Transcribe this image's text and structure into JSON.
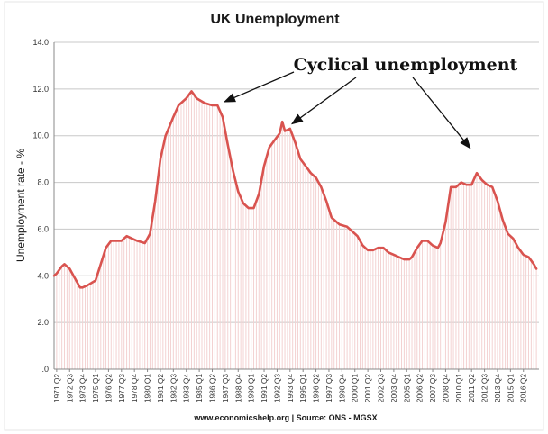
{
  "chart_data": {
    "type": "line",
    "title": "UK Unemployment",
    "xlabel": "",
    "ylabel": "Unemployment rate - %",
    "ylim": [
      0,
      14
    ],
    "y_ticks": [
      ".0",
      "2.0",
      "4.0",
      "6.0",
      "8.0",
      "10.0",
      "12.0",
      "14.0"
    ],
    "x_tick_labels": [
      "1971 Q2",
      "1972 Q3",
      "1973 Q4",
      "1975 Q1",
      "1976 Q2",
      "1977 Q3",
      "1978 Q4",
      "1980 Q1",
      "1981 Q2",
      "1982 Q3",
      "1983 Q4",
      "1985 Q1",
      "1986 Q2",
      "1987 Q3",
      "1988 Q4",
      "1990 Q1",
      "1991 Q2",
      "1992 Q3",
      "1993 Q4",
      "1995 Q1",
      "1996 Q2",
      "1997 Q3",
      "1998 Q4",
      "2000 Q1",
      "2001 Q2",
      "2002 Q3",
      "2003 Q4",
      "2005 Q1",
      "2006 Q2",
      "2007 Q3",
      "2008 Q4",
      "2010 Q1",
      "2011 Q2",
      "2012 Q3",
      "2013 Q4",
      "2015 Q1",
      "2016 Q2"
    ],
    "series": [
      {
        "color": "#d9534f",
        "points": [
          {
            "x": "1971 Q1",
            "y": 4.0
          },
          {
            "x": "1971 Q2",
            "y": 4.1
          },
          {
            "x": "1971 Q4",
            "y": 4.4
          },
          {
            "x": "1972 Q1",
            "y": 4.5
          },
          {
            "x": "1972 Q3",
            "y": 4.3
          },
          {
            "x": "1973 Q1",
            "y": 3.9
          },
          {
            "x": "1973 Q3",
            "y": 3.5
          },
          {
            "x": "1973 Q4",
            "y": 3.5
          },
          {
            "x": "1974 Q2",
            "y": 3.6
          },
          {
            "x": "1975 Q1",
            "y": 3.8
          },
          {
            "x": "1975 Q3",
            "y": 4.5
          },
          {
            "x": "1976 Q1",
            "y": 5.2
          },
          {
            "x": "1976 Q3",
            "y": 5.5
          },
          {
            "x": "1977 Q1",
            "y": 5.5
          },
          {
            "x": "1977 Q3",
            "y": 5.5
          },
          {
            "x": "1978 Q1",
            "y": 5.7
          },
          {
            "x": "1978 Q3",
            "y": 5.6
          },
          {
            "x": "1979 Q1",
            "y": 5.5
          },
          {
            "x": "1979 Q4",
            "y": 5.4
          },
          {
            "x": "1980 Q2",
            "y": 5.8
          },
          {
            "x": "1980 Q4",
            "y": 7.2
          },
          {
            "x": "1981 Q2",
            "y": 9.0
          },
          {
            "x": "1981 Q4",
            "y": 10.0
          },
          {
            "x": "1982 Q3",
            "y": 10.8
          },
          {
            "x": "1983 Q1",
            "y": 11.3
          },
          {
            "x": "1983 Q4",
            "y": 11.6
          },
          {
            "x": "1984 Q2",
            "y": 11.9
          },
          {
            "x": "1984 Q4",
            "y": 11.6
          },
          {
            "x": "1985 Q3",
            "y": 11.4
          },
          {
            "x": "1986 Q2",
            "y": 11.3
          },
          {
            "x": "1986 Q4",
            "y": 11.3
          },
          {
            "x": "1987 Q2",
            "y": 10.8
          },
          {
            "x": "1987 Q4",
            "y": 9.6
          },
          {
            "x": "1988 Q2",
            "y": 8.5
          },
          {
            "x": "1988 Q4",
            "y": 7.6
          },
          {
            "x": "1989 Q2",
            "y": 7.1
          },
          {
            "x": "1989 Q4",
            "y": 6.9
          },
          {
            "x": "1990 Q2",
            "y": 6.9
          },
          {
            "x": "1990 Q4",
            "y": 7.5
          },
          {
            "x": "1991 Q2",
            "y": 8.7
          },
          {
            "x": "1991 Q4",
            "y": 9.5
          },
          {
            "x": "1992 Q2",
            "y": 9.8
          },
          {
            "x": "1992 Q4",
            "y": 10.1
          },
          {
            "x": "1993 Q1",
            "y": 10.6
          },
          {
            "x": "1993 Q2",
            "y": 10.2
          },
          {
            "x": "1993 Q4",
            "y": 10.3
          },
          {
            "x": "1994 Q2",
            "y": 9.7
          },
          {
            "x": "1994 Q4",
            "y": 9.0
          },
          {
            "x": "1995 Q2",
            "y": 8.7
          },
          {
            "x": "1995 Q4",
            "y": 8.4
          },
          {
            "x": "1996 Q2",
            "y": 8.2
          },
          {
            "x": "1996 Q4",
            "y": 7.8
          },
          {
            "x": "1997 Q2",
            "y": 7.2
          },
          {
            "x": "1997 Q4",
            "y": 6.5
          },
          {
            "x": "1998 Q3",
            "y": 6.2
          },
          {
            "x": "1999 Q2",
            "y": 6.1
          },
          {
            "x": "1999 Q4",
            "y": 5.9
          },
          {
            "x": "2000 Q2",
            "y": 5.7
          },
          {
            "x": "2000 Q4",
            "y": 5.3
          },
          {
            "x": "2001 Q2",
            "y": 5.1
          },
          {
            "x": "2001 Q4",
            "y": 5.1
          },
          {
            "x": "2002 Q2",
            "y": 5.2
          },
          {
            "x": "2002 Q4",
            "y": 5.2
          },
          {
            "x": "2003 Q2",
            "y": 5.0
          },
          {
            "x": "2003 Q4",
            "y": 4.9
          },
          {
            "x": "2004 Q2",
            "y": 4.8
          },
          {
            "x": "2004 Q4",
            "y": 4.7
          },
          {
            "x": "2005 Q2",
            "y": 4.7
          },
          {
            "x": "2005 Q3",
            "y": 4.8
          },
          {
            "x": "2006 Q1",
            "y": 5.2
          },
          {
            "x": "2006 Q3",
            "y": 5.5
          },
          {
            "x": "2007 Q1",
            "y": 5.5
          },
          {
            "x": "2007 Q3",
            "y": 5.3
          },
          {
            "x": "2008 Q1",
            "y": 5.2
          },
          {
            "x": "2008 Q2",
            "y": 5.4
          },
          {
            "x": "2008 Q4",
            "y": 6.3
          },
          {
            "x": "2009 Q2",
            "y": 7.8
          },
          {
            "x": "2009 Q4",
            "y": 7.8
          },
          {
            "x": "2010 Q2",
            "y": 8.0
          },
          {
            "x": "2010 Q4",
            "y": 7.9
          },
          {
            "x": "2011 Q2",
            "y": 7.9
          },
          {
            "x": "2011 Q4",
            "y": 8.4
          },
          {
            "x": "2012 Q2",
            "y": 8.1
          },
          {
            "x": "2012 Q4",
            "y": 7.9
          },
          {
            "x": "2013 Q2",
            "y": 7.8
          },
          {
            "x": "2013 Q4",
            "y": 7.2
          },
          {
            "x": "2014 Q2",
            "y": 6.4
          },
          {
            "x": "2014 Q4",
            "y": 5.8
          },
          {
            "x": "2015 Q2",
            "y": 5.6
          },
          {
            "x": "2015 Q4",
            "y": 5.2
          },
          {
            "x": "2016 Q2",
            "y": 4.9
          },
          {
            "x": "2016 Q4",
            "y": 4.8
          },
          {
            "x": "2017 Q2",
            "y": 4.5
          },
          {
            "x": "2017 Q3",
            "y": 4.3
          }
        ]
      }
    ],
    "annotations": [
      {
        "text": "Cyclical unemployment",
        "points_to": [
          "1986 Q4",
          "1993 Q2",
          "2010 Q2"
        ]
      }
    ],
    "source": "www.economicshelp.org | Source: ONS - MGSX",
    "grid": true,
    "legend": "none",
    "colors": {
      "line": "#d9534f",
      "fill_hatch": "#f3d2d2",
      "grid": "#c8c8c8",
      "axis": "#888888",
      "text": "#1a1a1a"
    }
  }
}
